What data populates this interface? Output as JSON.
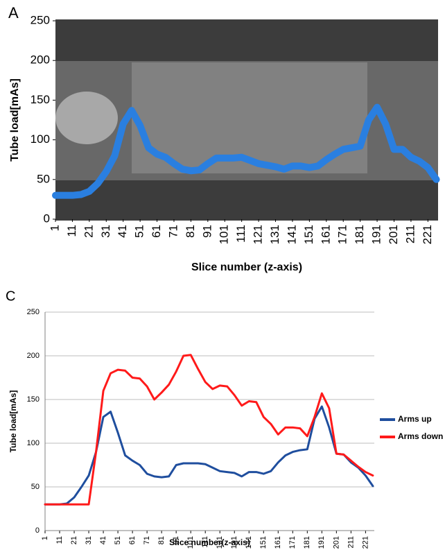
{
  "chart_data": [
    {
      "type": "line",
      "label": "A",
      "ylabel": "Tube load[mAs]",
      "xlabel": "Slice number (z-axis)",
      "x": [
        1,
        6,
        11,
        16,
        21,
        26,
        31,
        36,
        41,
        46,
        51,
        56,
        61,
        66,
        71,
        76,
        81,
        86,
        91,
        96,
        101,
        106,
        111,
        116,
        121,
        126,
        131,
        136,
        141,
        146,
        151,
        156,
        161,
        166,
        171,
        176,
        181,
        186,
        191,
        196,
        201,
        206,
        211,
        216,
        221,
        226
      ],
      "series": [
        {
          "color": "#2a7fe0",
          "values": [
            30,
            30,
            30,
            31,
            35,
            45,
            60,
            80,
            120,
            137,
            118,
            90,
            82,
            78,
            70,
            63,
            61,
            62,
            70,
            77,
            77,
            77,
            78,
            74,
            70,
            68,
            66,
            63,
            67,
            67,
            65,
            67,
            75,
            82,
            88,
            90,
            92,
            125,
            141,
            120,
            88,
            88,
            78,
            73,
            65,
            50
          ]
        }
      ],
      "xlim": [
        1,
        227
      ],
      "xticks": [
        1,
        11,
        21,
        31,
        41,
        51,
        61,
        71,
        81,
        91,
        101,
        111,
        121,
        131,
        141,
        151,
        161,
        171,
        181,
        191,
        201,
        211,
        221
      ],
      "ylim": [
        0,
        250
      ],
      "yticks": [
        0,
        50,
        100,
        150,
        200,
        250
      ],
      "grid": false
    },
    {
      "type": "line",
      "label": "C",
      "ylabel": "Tube load[mAs]",
      "xlabel": "Slice number(z-axis)",
      "x": [
        1,
        6,
        11,
        16,
        21,
        26,
        31,
        36,
        41,
        46,
        51,
        56,
        61,
        66,
        71,
        76,
        81,
        86,
        91,
        96,
        101,
        106,
        111,
        116,
        121,
        126,
        131,
        136,
        141,
        146,
        151,
        156,
        161,
        166,
        171,
        176,
        181,
        186,
        191,
        196,
        201,
        206,
        211,
        216,
        221,
        226
      ],
      "series": [
        {
          "name": "Arms up",
          "color": "#1f4e9e",
          "values": [
            30,
            30,
            30,
            31,
            38,
            50,
            63,
            90,
            130,
            136,
            112,
            86,
            80,
            75,
            65,
            62,
            61,
            62,
            75,
            77,
            77,
            77,
            76,
            72,
            68,
            67,
            66,
            62,
            67,
            67,
            65,
            68,
            78,
            86,
            90,
            92,
            93,
            128,
            142,
            118,
            88,
            87,
            78,
            72,
            63,
            51
          ]
        },
        {
          "name": "Arms down",
          "color": "#ff1a1a",
          "values": [
            30,
            30,
            30,
            30,
            30,
            30,
            30,
            90,
            160,
            180,
            184,
            183,
            175,
            174,
            165,
            150,
            158,
            167,
            182,
            200,
            201,
            185,
            170,
            162,
            166,
            165,
            155,
            143,
            148,
            147,
            130,
            122,
            110,
            118,
            118,
            117,
            108,
            130,
            157,
            140,
            88,
            87,
            80,
            73,
            67,
            63
          ]
        }
      ],
      "xlim": [
        1,
        227
      ],
      "xticks": [
        1,
        11,
        21,
        31,
        41,
        51,
        61,
        71,
        81,
        91,
        101,
        111,
        121,
        131,
        141,
        151,
        161,
        171,
        181,
        191,
        201,
        211,
        221
      ],
      "ylim": [
        0,
        250
      ],
      "yticks": [
        0,
        50,
        100,
        150,
        200,
        250
      ],
      "grid": true,
      "legend": "right"
    }
  ]
}
